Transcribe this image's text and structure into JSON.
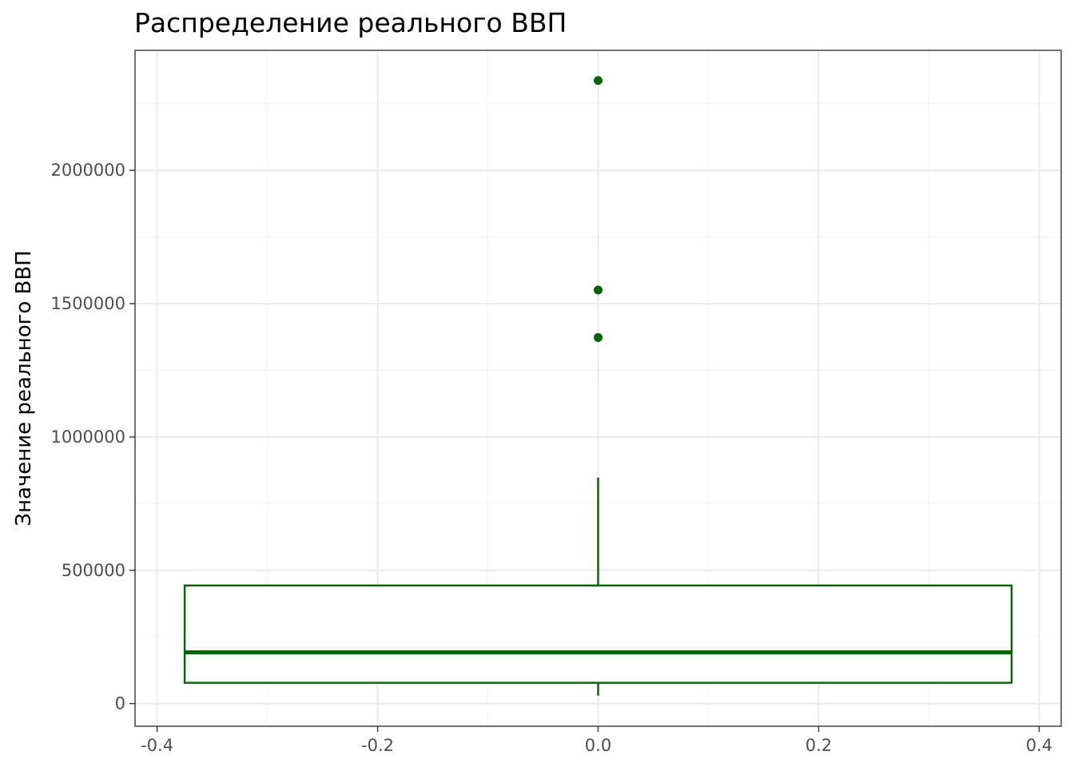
{
  "chart_data": {
    "type": "boxplot",
    "title": "Распределение реального ВВП",
    "xlabel": "",
    "ylabel": "Значение реального ВВП",
    "x_ticks": [
      "-0.4",
      "-0.2",
      "0.0",
      "0.2",
      "0.4"
    ],
    "y_ticks": [
      "0",
      "500000",
      "1000000",
      "1500000",
      "2000000"
    ],
    "xlim": [
      -0.42,
      0.42
    ],
    "ylim": [
      -85000,
      2450000
    ],
    "grid": true,
    "box": {
      "x": 0,
      "width": 0.75,
      "whisker_low": 30000,
      "q1": 78000,
      "median": 192000,
      "q3": 443000,
      "whisker_high": 848000
    },
    "outliers": [
      1373000,
      1551000,
      2337000
    ],
    "colors": {
      "box": "#006400",
      "outlier": "#006400",
      "grid_major": "#ebebeb",
      "grid_minor": "#f5f5f5",
      "panel_border": "#333333"
    }
  }
}
